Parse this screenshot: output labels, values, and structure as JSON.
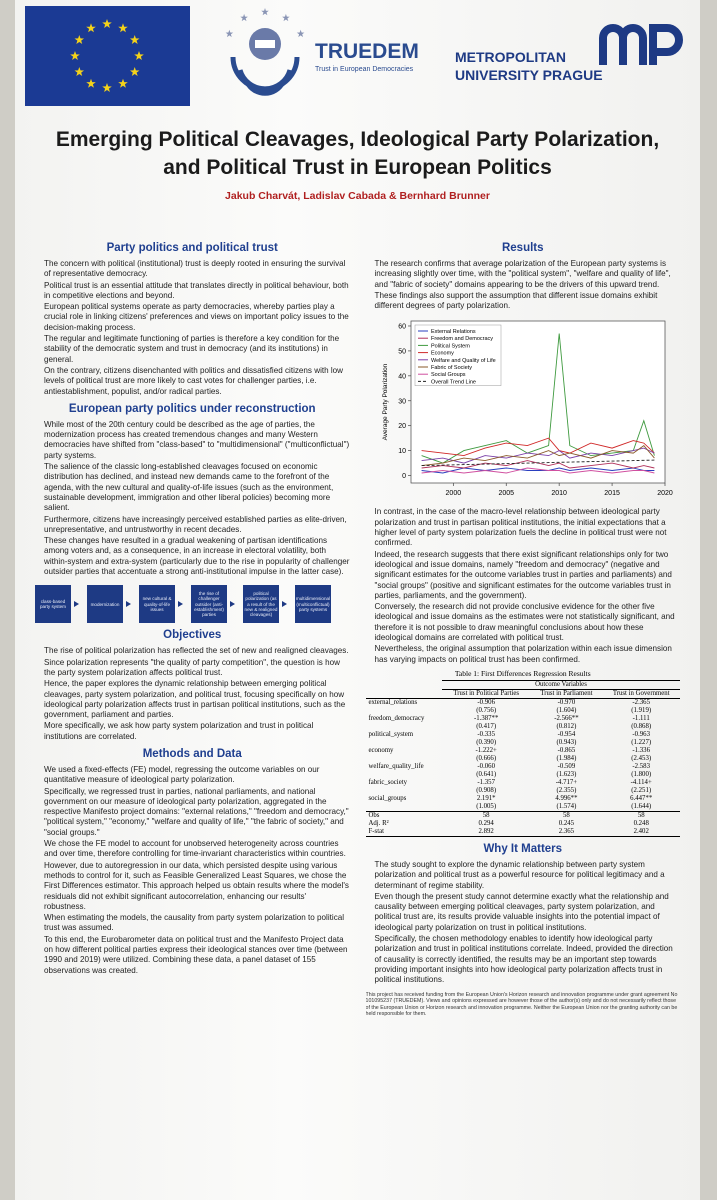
{
  "header": {
    "truedem_name": "TRUEDEM",
    "truedem_tagline": "Trust in European Democracies",
    "university_line1": "METROPOLITAN",
    "university_line2": "UNIVERSITY PRAGUE",
    "title": "Emerging Political Cleavages, Ideological Party Polarization, and Political Trust in European Politics",
    "authors": "Jakub Charvát, Ladislav Cabada & Bernhard Brunner"
  },
  "left_column": [
    {
      "heading": "Party politics and political trust",
      "bullets": [
        "The concern with political (institutional) trust is deeply rooted in ensuring the survival of representative democracy.",
        "Political trust is an essential attitude that translates directly in political behaviour, both in competitive elections and beyond.",
        "European political systems operate as party democracies, whereby parties play a crucial role in linking citizens' preferences and views on important policy issues to the decision-making process.",
        "The regular and legitimate functioning of parties is therefore a key condition for the stability of the democratic system and trust in democracy (and its institutions) in general.",
        "On the contrary, citizens disenchanted with politics and dissatisfied citizens with low levels of political trust are more likely to cast votes for challenger parties, i.e. antiestablishment, populist, and/or radical parties."
      ]
    },
    {
      "heading": "European party politics under reconstruction",
      "bullets": [
        "While most of the 20th century could be described as the age of parties, the modernization process has created tremendous changes and many Western democracies have shifted from \"class-based\" to \"multidimensional\" (\"multiconflictual\") party systems.",
        "The salience of the classic long-established cleavages focused on economic distribution has declined, and instead new demands came to the forefront of the agenda, with the new cultural and quality-of-life issues (such as the environment, sustainable development, immigration and other liberal policies) becoming more salient.",
        "Furthermore, citizens have increasingly perceived established parties as elite-driven, unrepresentative, and untrustworthy in recent decades.",
        "These changes have resulted in a gradual weakening of partisan identifications among voters and, as a consequence, in an increase in electoral volatility, both within-system and extra-system (particularly due to the rise in popularity of challenger outsider parties that accentuate a strong anti-institutional impulse in the latter case)."
      ],
      "flow": [
        "class-based party system",
        "modernization",
        "new cultural & quality-of-life issues",
        "the rise of challenger outsider (anti-establishment) parties",
        "political polarization (as a result of the new & realigned cleavages)",
        "multidimensional (multiconflictual) party systems"
      ]
    },
    {
      "heading": "Objectives",
      "bullets": [
        "The rise of political polarization has reflected the set of new and realigned cleavages.",
        "Since polarization represents \"the quality of party competition\", the question is how the party system polarization affects political trust.",
        "Hence, the paper explores the dynamic relationship between emerging political cleavages, party system polarization, and political trust, focusing specifically on how ideological party polarization affects trust in partisan political institutions, such as the government, parliament and parties.",
        "More specifically, we ask how party system polarization and trust in political institutions are correlated."
      ]
    },
    {
      "heading": "Methods and Data",
      "bullets": [
        "We used a fixed-effects (FE) model, regressing the outcome variables on our quantitative measure of ideological party polarization.",
        "Specifically, we regressed trust in parties, national parliaments, and national government on our measure of ideological party polarization, aggregated in the respective Manifesto project domains: \"external relations,\" \"freedom and democracy,\" \"political system,\" \"economy,\" \"welfare and quality of life,\" \"the fabric of society,\" and \"social groups.\"",
        "We chose the FE model to account for unobserved heterogeneity across countries and over time, therefore controlling for time-invariant characteristics within countries.",
        "However, due to autoregression in our data, which persisted despite using various methods to control for it, such as Feasible Generalized Least Squares, we chose the First Differences estimator. This approach helped us obtain results where the model's residuals did not exhibit significant autocorrelation, enhancing our results' robustness.",
        "When estimating the models, the causality from party system polarization to political trust was assumed.",
        "To this end, the Eurobarometer data on political trust and the Manifesto Project data on how different political parties express their ideological stances over time (between 1990 and 2019) were utilized. Combining these data, a panel dataset of 155 observations was created."
      ]
    }
  ],
  "results": {
    "heading": "Results",
    "bullets_before_chart": [
      "The research confirms that average polarization of the European party systems is increasing slightly over time, with the \"political system\", \"welfare and quality of life\", and \"fabric of society\" domains appearing to be the drivers of this upward trend.",
      "These findings also support the assumption that different issue domains exhibit different degrees of party polarization."
    ],
    "bullets_after_chart": [
      "In contrast, in the case of the macro-level relationship between ideological party polarization and trust in partisan political institutions, the initial expectations that a higher level of party system polarization fuels the decline in political trust were not confirmed.",
      "Indeed, the research suggests that there exist significant relationships only for two ideological and issue domains, namely \"freedom and democracy\" (negative and significant estimates for the outcome variables trust in parties and parliaments) and \"social groups\" (positive and significant estimates for the outcome variables trust in parties, parliaments, and the government).",
      "Conversely, the research did not provide conclusive evidence for the other five ideological and issue domains as the estimates were not statistically significant, and therefore it is not possible to draw meaningful conclusions about how these ideological domains are correlated with political trust.",
      "Nevertheless, the original assumption that polarization within each issue dimension has varying impacts on political trust has been confirmed."
    ]
  },
  "chart_data": {
    "type": "line",
    "y_label": "Average Party Polarization",
    "x": [
      1997,
      1999,
      2001,
      2003,
      2005,
      2007,
      2009,
      2010,
      2011,
      2013,
      2015,
      2017,
      2018,
      2019
    ],
    "xlim": [
      1996,
      2020
    ],
    "xticks": [
      2000,
      2005,
      2010,
      2015,
      2020
    ],
    "ylim": [
      -3,
      62
    ],
    "yticks": [
      0,
      10,
      20,
      30,
      40,
      50,
      60
    ],
    "legend": "top-left",
    "series": [
      {
        "name": "External Relations",
        "color": "#2a3fbf",
        "values": [
          2,
          1,
          3,
          2,
          3,
          2,
          2,
          3,
          2,
          3,
          2,
          3,
          2,
          2
        ]
      },
      {
        "name": "Freedom and Democracy",
        "color": "#b0305a",
        "values": [
          3,
          4,
          3,
          5,
          4,
          6,
          4,
          5,
          3,
          4,
          5,
          3,
          4,
          3
        ]
      },
      {
        "name": "Political System",
        "color": "#3f9a3f",
        "values": [
          8,
          5,
          10,
          12,
          14,
          9,
          12,
          57,
          12,
          8,
          9,
          10,
          22,
          8
        ]
      },
      {
        "name": "Economy",
        "color": "#d02828",
        "values": [
          10,
          9,
          8,
          11,
          13,
          12,
          15,
          10,
          9,
          13,
          11,
          14,
          13,
          9
        ]
      },
      {
        "name": "Welfare and Quality of Life",
        "color": "#7a3fa8",
        "values": [
          6,
          7,
          5,
          8,
          7,
          9,
          8,
          10,
          7,
          9,
          8,
          10,
          11,
          9
        ]
      },
      {
        "name": "Fabric of Society",
        "color": "#8a5a2a",
        "values": [
          4,
          5,
          7,
          6,
          8,
          7,
          10,
          8,
          9,
          7,
          10,
          9,
          12,
          7
        ]
      },
      {
        "name": "Social Groups",
        "color": "#d050a0",
        "values": [
          1,
          2,
          1,
          2,
          1,
          3,
          2,
          2,
          1,
          2,
          1,
          2,
          2,
          1
        ]
      },
      {
        "name": "Overall Trend Line",
        "color": "#222222",
        "dashed": true,
        "values": [
          4,
          4.2,
          4.4,
          4.6,
          4.8,
          5,
          5.2,
          5.3,
          5.4,
          5.6,
          5.8,
          6,
          6.1,
          6.2
        ]
      }
    ]
  },
  "table": {
    "caption": "Table 1: First Differences Regression Results",
    "group_header": "Outcome Variables",
    "columns": [
      "Trust in Political Parties",
      "Trust in Parliament",
      "Trust in Government"
    ],
    "rows": [
      {
        "label": "external_relations",
        "estimates": [
          "-0.906",
          "-0.970",
          "-2.365"
        ],
        "errors": [
          "(0.756)",
          "(1.604)",
          "(1.919)"
        ]
      },
      {
        "label": "freedom_democracy",
        "estimates": [
          "-1.387**",
          "-2.566**",
          "-1.111"
        ],
        "errors": [
          "(0.417)",
          "(0.812)",
          "(0.868)"
        ]
      },
      {
        "label": "political_system",
        "estimates": [
          "-0.335",
          "-0.954",
          "-0.963"
        ],
        "errors": [
          "(0.390)",
          "(0.943)",
          "(1.227)"
        ]
      },
      {
        "label": "economy",
        "estimates": [
          "-1.222+",
          "-0.865",
          "-1.336"
        ],
        "errors": [
          "(0.666)",
          "(1.984)",
          "(2.453)"
        ]
      },
      {
        "label": "welfare_quality_life",
        "estimates": [
          "-0.060",
          "-0.509",
          "-2.583"
        ],
        "errors": [
          "(0.641)",
          "(1.623)",
          "(1.800)"
        ]
      },
      {
        "label": "fabric_society",
        "estimates": [
          "-1.357",
          "-4.717+",
          "-4.114+"
        ],
        "errors": [
          "(0.908)",
          "(2.355)",
          "(2.251)"
        ]
      },
      {
        "label": "social_groups",
        "estimates": [
          "2.191*",
          "4.996**",
          "6.447**"
        ],
        "errors": [
          "(1.005)",
          "(1.574)",
          "(1.644)"
        ]
      }
    ],
    "stats": [
      {
        "label": "Obs",
        "values": [
          "58",
          "58",
          "58"
        ]
      },
      {
        "label": "Adj. R²",
        "values": [
          "0.294",
          "0.245",
          "0.248"
        ]
      },
      {
        "label": "F-stat",
        "values": [
          "2.892",
          "2.365",
          "2.402"
        ]
      }
    ]
  },
  "why_it_matters": {
    "heading": "Why It Matters",
    "bullets": [
      "The study sought to explore the dynamic relationship between party system polarization and political trust as a powerful resource for political legitimacy and a determinant of regime stability.",
      "Even though the present study cannot determine exactly what the relationship and causality between emerging political cleavages, party system polarization, and political trust are, its results provide valuable insights into the potential impact of ideological party polarization on trust in political institutions.",
      "Specifically, the chosen methodology enables to identify how ideological party polarization and trust in political institutions correlate. Indeed, provided the direction of causality is correctly identified, the results may be an important step towards providing important insights into how ideological party polarization affects trust in political institutions."
    ]
  },
  "footer": "This project has received funding from the European Union's Horizon research and innovation programme under grant agreement No 101095237 (TRUEDEM). Views and opinions expressed are however those of the author(s) only and do not necessarily reflect those of the European Union or Horizon research and innovation programme. Neither the European Union nor the granting authority can be held responsible for them."
}
